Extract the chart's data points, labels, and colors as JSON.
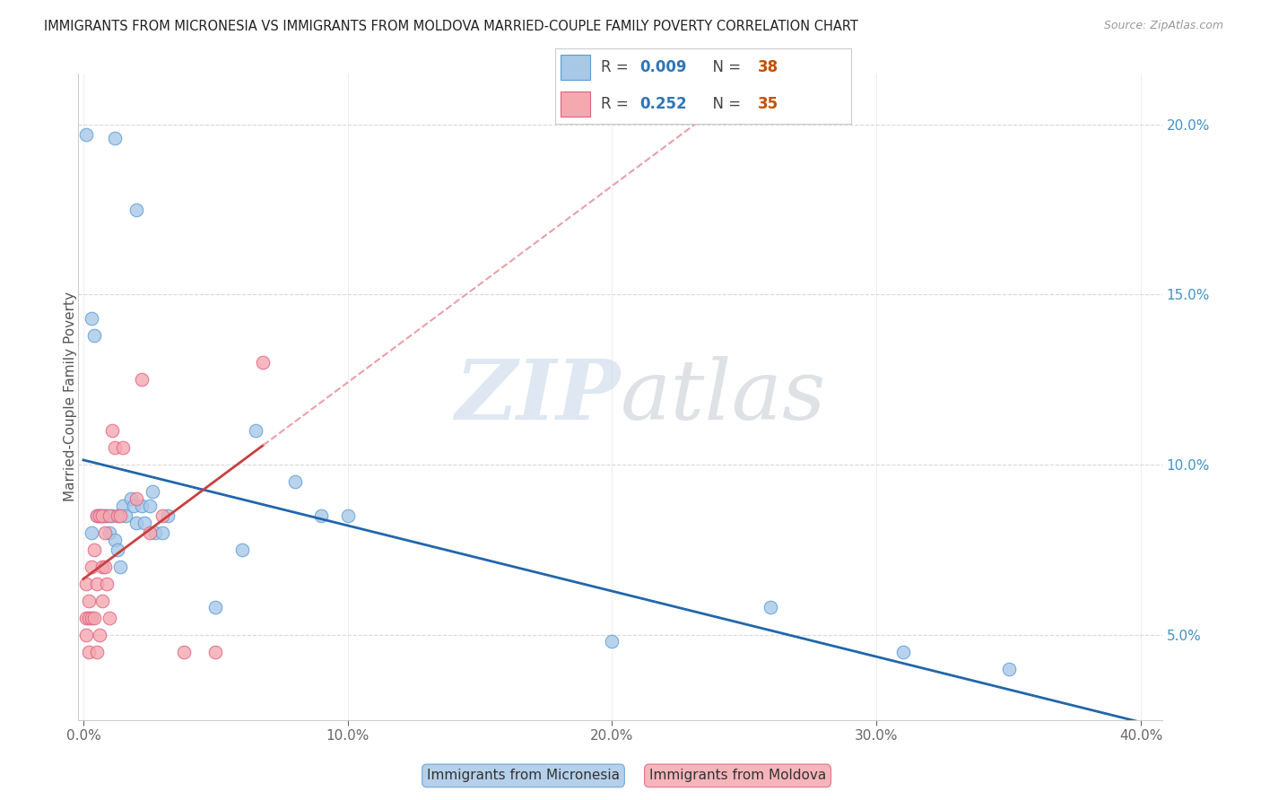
{
  "title": "IMMIGRANTS FROM MICRONESIA VS IMMIGRANTS FROM MOLDOVA MARRIED-COUPLE FAMILY POVERTY CORRELATION CHART",
  "source": "Source: ZipAtlas.com",
  "ylabel": "Married-Couple Family Poverty",
  "legend_label_blue": "Immigrants from Micronesia",
  "legend_label_pink": "Immigrants from Moldova",
  "R_blue": "0.009",
  "N_blue": "38",
  "R_pink": "0.252",
  "N_pink": "35",
  "blue_color": "#a8c8e8",
  "pink_color": "#f4a8b0",
  "blue_edge": "#5b9bd5",
  "pink_edge": "#e06080",
  "trendline_blue_color": "#2166ac",
  "trendline_pink_solid": "#c94040",
  "trendline_pink_dash": "#e8a0a8",
  "watermark_zip_color": "#c8d8e8",
  "watermark_atlas_color": "#c0c8d0",
  "xmin": -0.002,
  "xmax": 0.408,
  "ymin": 2.5,
  "ymax": 21.5,
  "ytick_vals": [
    5.0,
    10.0,
    15.0,
    20.0
  ],
  "ytick_labels": [
    "5.0%",
    "10.0%",
    "15.0%",
    "20.0%"
  ],
  "xtick_vals": [
    0.0,
    0.1,
    0.2,
    0.3,
    0.4
  ],
  "xtick_labels": [
    "0.0%",
    "10.0%",
    "20.0%",
    "30.0%",
    "40.0%"
  ],
  "blue_x": [
    0.012,
    0.02,
    0.001,
    0.003,
    0.003,
    0.004,
    0.005,
    0.006,
    0.007,
    0.008,
    0.009,
    0.01,
    0.011,
    0.012,
    0.013,
    0.014,
    0.015,
    0.016,
    0.018,
    0.019,
    0.02,
    0.022,
    0.023,
    0.025,
    0.026,
    0.027,
    0.03,
    0.032,
    0.05,
    0.06,
    0.065,
    0.08,
    0.09,
    0.1,
    0.2,
    0.26,
    0.31,
    0.35
  ],
  "blue_y": [
    19.6,
    17.5,
    19.7,
    8.0,
    14.3,
    13.8,
    8.5,
    8.5,
    8.5,
    8.5,
    8.5,
    8.0,
    8.5,
    7.8,
    7.5,
    7.0,
    8.8,
    8.5,
    9.0,
    8.8,
    8.3,
    8.8,
    8.3,
    8.8,
    9.2,
    8.0,
    8.0,
    8.5,
    5.8,
    7.5,
    11.0,
    9.5,
    8.5,
    8.5,
    4.8,
    5.8,
    4.5,
    4.0
  ],
  "pink_x": [
    0.001,
    0.001,
    0.001,
    0.002,
    0.002,
    0.002,
    0.003,
    0.003,
    0.004,
    0.004,
    0.005,
    0.005,
    0.005,
    0.006,
    0.006,
    0.007,
    0.007,
    0.007,
    0.008,
    0.008,
    0.009,
    0.01,
    0.01,
    0.011,
    0.012,
    0.013,
    0.014,
    0.015,
    0.02,
    0.022,
    0.025,
    0.03,
    0.038,
    0.05,
    0.068
  ],
  "pink_y": [
    5.0,
    6.5,
    5.5,
    4.5,
    5.5,
    6.0,
    5.5,
    7.0,
    5.5,
    7.5,
    4.5,
    6.5,
    8.5,
    5.0,
    8.5,
    7.0,
    8.5,
    6.0,
    7.0,
    8.0,
    6.5,
    8.5,
    5.5,
    11.0,
    10.5,
    8.5,
    8.5,
    10.5,
    9.0,
    12.5,
    8.0,
    8.5,
    4.5,
    4.5,
    13.0
  ]
}
